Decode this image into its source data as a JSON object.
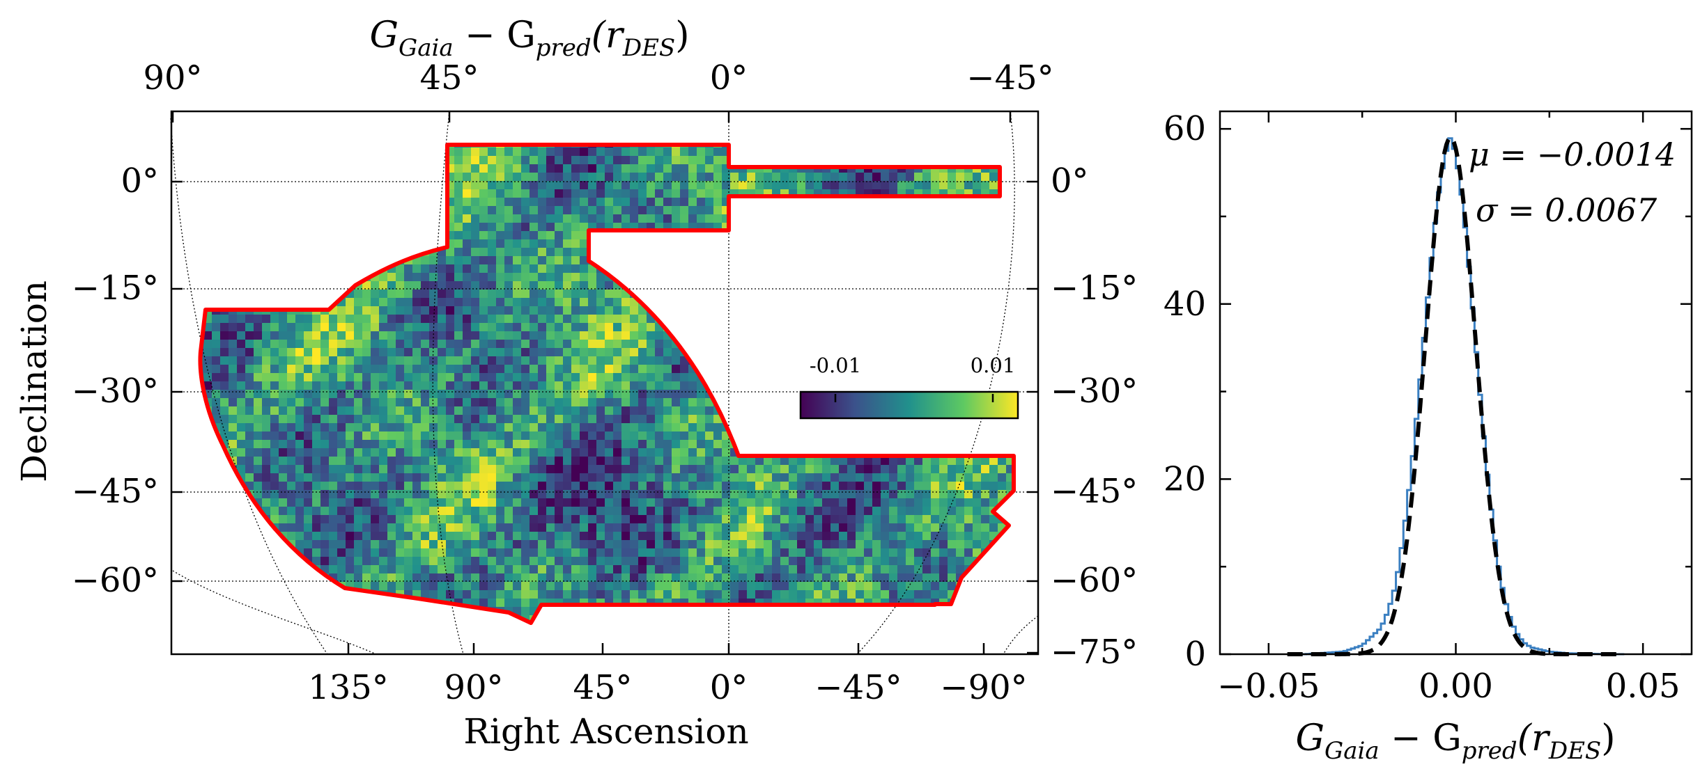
{
  "figure": {
    "map_panel": {
      "top_title": {
        "main": "G",
        "sub1": "Gaia",
        "mid": " − G",
        "sub2": "pred",
        "paren_open": "(r",
        "sub3": "DES",
        "paren_close": ")"
      },
      "xlabel": "Right Ascension",
      "ylabel": "Declination",
      "top_ra_ticks": [
        "90°",
        "45°",
        "0°",
        "−45°"
      ],
      "bottom_ra_ticks": [
        "135°",
        "90°",
        "45°",
        "0°",
        "−45°",
        "−90°"
      ],
      "left_dec_ticks": [
        "0°",
        "−15°",
        "−30°",
        "−45°",
        "−60°"
      ],
      "right_dec_ticks": [
        "0°",
        "−15°",
        "−30°",
        "−45°",
        "−60°",
        "−75°"
      ],
      "colorbar": {
        "tick_labels": [
          "-0.01",
          "0.01"
        ],
        "colormap": [
          "#440154",
          "#3b528b",
          "#21918c",
          "#5ec962",
          "#fde725"
        ]
      },
      "footprint_color": "#ff0000"
    },
    "hist_panel": {
      "xlabel": {
        "main": "G",
        "sub1": "Gaia",
        "mid": " − G",
        "sub2": "pred",
        "paren_open": "(r",
        "sub3": "DES",
        "paren_close": ")"
      },
      "x_ticks": [
        "−0.05",
        "0.00",
        "0.05"
      ],
      "y_ticks": [
        "0",
        "20",
        "40",
        "60"
      ],
      "annotations": {
        "mu": "μ = −0.0014",
        "sigma": "σ = 0.0067"
      },
      "hist_color": "#3a7fc1",
      "fit_color": "#000000"
    }
  },
  "chart_data": [
    {
      "type": "heatmap",
      "title": "G_Gaia − G_pred(r_DES)",
      "xlabel": "Right Ascension",
      "ylabel": "Declination",
      "x_ticks_deg": [
        135,
        90,
        45,
        0,
        -45,
        -90
      ],
      "y_ticks_deg": [
        0,
        -15,
        -30,
        -45,
        -60,
        -75
      ],
      "color_range": [
        -0.015,
        0.015
      ],
      "colorbar_ticks": [
        -0.01,
        0.01
      ],
      "colormap": "viridis",
      "footprint_outline": "red"
    },
    {
      "type": "line",
      "xlabel": "G_Gaia − G_pred(r_DES)",
      "xlim": [
        -0.063,
        0.063
      ],
      "ylim": [
        0,
        62
      ],
      "x_ticks": [
        -0.05,
        0.0,
        0.05
      ],
      "y_ticks": [
        0,
        20,
        40,
        60
      ],
      "mu": -0.0014,
      "sigma": 0.0067,
      "histogram": {
        "x": [
          -0.03,
          -0.025,
          -0.02,
          -0.018,
          -0.016,
          -0.014,
          -0.012,
          -0.01,
          -0.008,
          -0.006,
          -0.004,
          -0.002,
          -0.0014,
          0.0,
          0.002,
          0.004,
          0.006,
          0.008,
          0.01,
          0.012,
          0.014,
          0.016,
          0.018,
          0.02,
          0.025,
          0.03
        ],
        "y": [
          0.3,
          1.0,
          3.0,
          5.0,
          8.0,
          13.5,
          20.5,
          29.0,
          38.5,
          47.5,
          54.5,
          58.5,
          59.0,
          57.0,
          51.0,
          42.0,
          32.0,
          22.5,
          14.5,
          8.5,
          4.8,
          2.6,
          1.4,
          0.8,
          0.3,
          0.1
        ]
      },
      "gaussian_fit": {
        "mu": -0.0014,
        "sigma": 0.0067,
        "peak": 59.0
      }
    }
  ]
}
